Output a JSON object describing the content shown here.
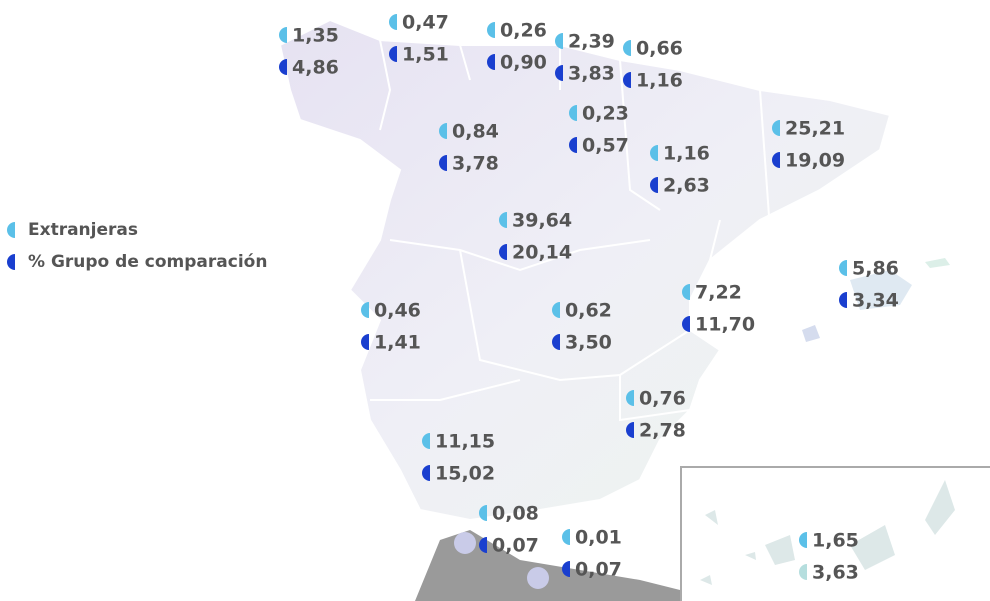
{
  "legend": [
    "Extranjeras",
    "% Grupo de comparación"
  ],
  "regions": [
    [
      "1,35",
      "4,86"
    ],
    [
      "0,47",
      "1,51"
    ],
    [
      "0,26",
      "0,90"
    ],
    [
      "2,39",
      "3,83"
    ],
    [
      "0,66",
      "1,16"
    ],
    [
      "0,23",
      "0,57"
    ],
    [
      "0,84",
      "3,78"
    ],
    [
      "1,16",
      "2,63"
    ],
    [
      "25,21",
      "19,09"
    ],
    [
      "39,64",
      "20,14"
    ],
    [
      "5,86",
      "3,34"
    ],
    [
      "0,46",
      "1,41"
    ],
    [
      "0,62",
      "3,50"
    ],
    [
      "7,22",
      "11,70"
    ],
    [
      "0,76",
      "2,78"
    ],
    [
      "11,15",
      "15,02"
    ],
    [
      "0,08",
      "0,07"
    ],
    [
      "0,01",
      "0,07"
    ],
    [
      "1,65",
      "3,63"
    ]
  ]
}
